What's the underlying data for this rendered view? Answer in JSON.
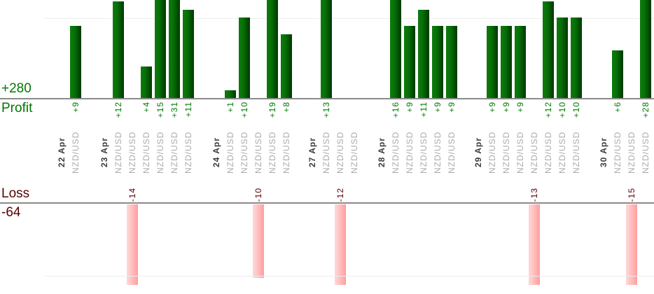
{
  "chart_data": {
    "type": "bar",
    "symbol": "NZD/USD",
    "profit": {
      "axis_label": "Profit",
      "total_label": "+280",
      "total": 280,
      "baseline_value": 0,
      "gridline_value": 10,
      "visible_ylim": [
        0,
        12.2
      ],
      "bar_color_left": "#0d7c0d",
      "bar_color_right": "#013c01",
      "text_color": "#007700"
    },
    "loss": {
      "axis_label": "Loss",
      "total_label": "-64",
      "total": -64,
      "baseline_value": 0,
      "gridline_value": -10,
      "visible_ylim": [
        -11.1,
        0
      ],
      "bar_color_left": "#ffd8d8",
      "bar_color_right": "#ff9e9e",
      "text_color": "#550000"
    },
    "grid": "one line per chart at +10 / -10",
    "legend_position": "none",
    "groups": [
      {
        "date": "22 Apr",
        "trades": [
          {
            "symbol": "NZD/USD",
            "pips": 9,
            "label": "+9"
          }
        ]
      },
      {
        "date": "23 Apr",
        "trades": [
          {
            "symbol": "NZD/USD",
            "pips": 12,
            "label": "+12"
          },
          {
            "symbol": "NZD/USD",
            "pips": -14,
            "label": "-14"
          },
          {
            "symbol": "NZD/USD",
            "pips": 4,
            "label": "+4"
          },
          {
            "symbol": "NZD/USD",
            "pips": 15,
            "label": "+15"
          },
          {
            "symbol": "NZD/USD",
            "pips": 31,
            "label": "+31"
          },
          {
            "symbol": "NZD/USD",
            "pips": 11,
            "label": "+11"
          }
        ]
      },
      {
        "date": "24 Apr",
        "trades": [
          {
            "symbol": "NZD/USD",
            "pips": 1,
            "label": "+1"
          },
          {
            "symbol": "NZD/USD",
            "pips": 10,
            "label": "+10"
          },
          {
            "symbol": "NZD/USD",
            "pips": -10,
            "label": "-10"
          },
          {
            "symbol": "NZD/USD",
            "pips": 19,
            "label": "+19"
          },
          {
            "symbol": "NZD/USD",
            "pips": 8,
            "label": "+8"
          }
        ]
      },
      {
        "date": "27 Apr",
        "trades": [
          {
            "symbol": "NZD/USD",
            "pips": 13,
            "label": "+13"
          },
          {
            "symbol": "NZD/USD",
            "pips": -12,
            "label": "-12"
          },
          {
            "symbol": "NZD/USD",
            "pips": 0,
            "label": ""
          }
        ]
      },
      {
        "date": "28 Apr",
        "trades": [
          {
            "symbol": "NZD/USD",
            "pips": 16,
            "label": "+16"
          },
          {
            "symbol": "NZD/USD",
            "pips": 9,
            "label": "+9"
          },
          {
            "symbol": "NZD/USD",
            "pips": 11,
            "label": "+11"
          },
          {
            "symbol": "NZD/USD",
            "pips": 9,
            "label": "+9"
          },
          {
            "symbol": "NZD/USD",
            "pips": 9,
            "label": "+9"
          }
        ]
      },
      {
        "date": "29 Apr",
        "trades": [
          {
            "symbol": "NZD/USD",
            "pips": 9,
            "label": "+9"
          },
          {
            "symbol": "NZD/USD",
            "pips": 9,
            "label": "+9"
          },
          {
            "symbol": "NZD/USD",
            "pips": 9,
            "label": "+9"
          },
          {
            "symbol": "NZD/USD",
            "pips": -13,
            "label": "-13"
          },
          {
            "symbol": "NZD/USD",
            "pips": 12,
            "label": "+12"
          },
          {
            "symbol": "NZD/USD",
            "pips": 10,
            "label": "+10"
          },
          {
            "symbol": "NZD/USD",
            "pips": 10,
            "label": "+10"
          }
        ]
      },
      {
        "date": "30 Apr",
        "trades": [
          {
            "symbol": "NZD/USD",
            "pips": 6,
            "label": "+6"
          },
          {
            "symbol": "NZD/USD",
            "pips": -15,
            "label": "-15"
          },
          {
            "symbol": "NZD/USD",
            "pips": 28,
            "label": "+28"
          }
        ]
      }
    ]
  }
}
